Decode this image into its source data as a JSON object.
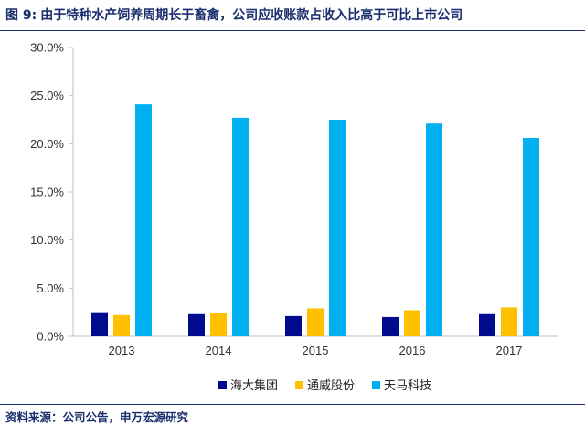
{
  "title": {
    "prefix": "图 9:",
    "text": "由于特种水产饲养周期长于畜禽，公司应收账款占收入比高于可比上市公司"
  },
  "source": "资料来源：公司公告，申万宏源研究",
  "colors": {
    "title": "#1b2f6e",
    "axis": "#bfbfbf"
  },
  "chart_data": {
    "type": "bar",
    "categories": [
      "2013",
      "2014",
      "2015",
      "2016",
      "2017"
    ],
    "series": [
      {
        "name": "海大集团",
        "color": "#000b8e",
        "values": [
          2.5,
          2.3,
          2.1,
          2.0,
          2.3
        ]
      },
      {
        "name": "通威股份",
        "color": "#ffc000",
        "values": [
          2.2,
          2.4,
          2.9,
          2.7,
          3.0
        ]
      },
      {
        "name": "天马科技",
        "color": "#00b0f0",
        "values": [
          24.1,
          22.7,
          22.5,
          22.1,
          20.6
        ]
      }
    ],
    "ylim": [
      0,
      30
    ],
    "yticks": [
      0,
      5,
      10,
      15,
      20,
      25,
      30
    ],
    "ytick_labels": [
      "0.0%",
      "5.0%",
      "10.0%",
      "15.0%",
      "20.0%",
      "25.0%",
      "30.0%"
    ],
    "grid": false,
    "legend_position": "bottom"
  }
}
